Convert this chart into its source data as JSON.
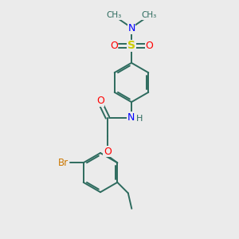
{
  "bg_color": "#ebebeb",
  "bond_color": "#2d6b5e",
  "colors": {
    "N": "#0000ff",
    "O": "#ff0000",
    "S": "#cccc00",
    "Br": "#cc7700",
    "C": "#2d6b5e",
    "H": "#2d6b5e"
  },
  "figsize": [
    3.0,
    3.0
  ],
  "dpi": 100,
  "lw": 1.4
}
